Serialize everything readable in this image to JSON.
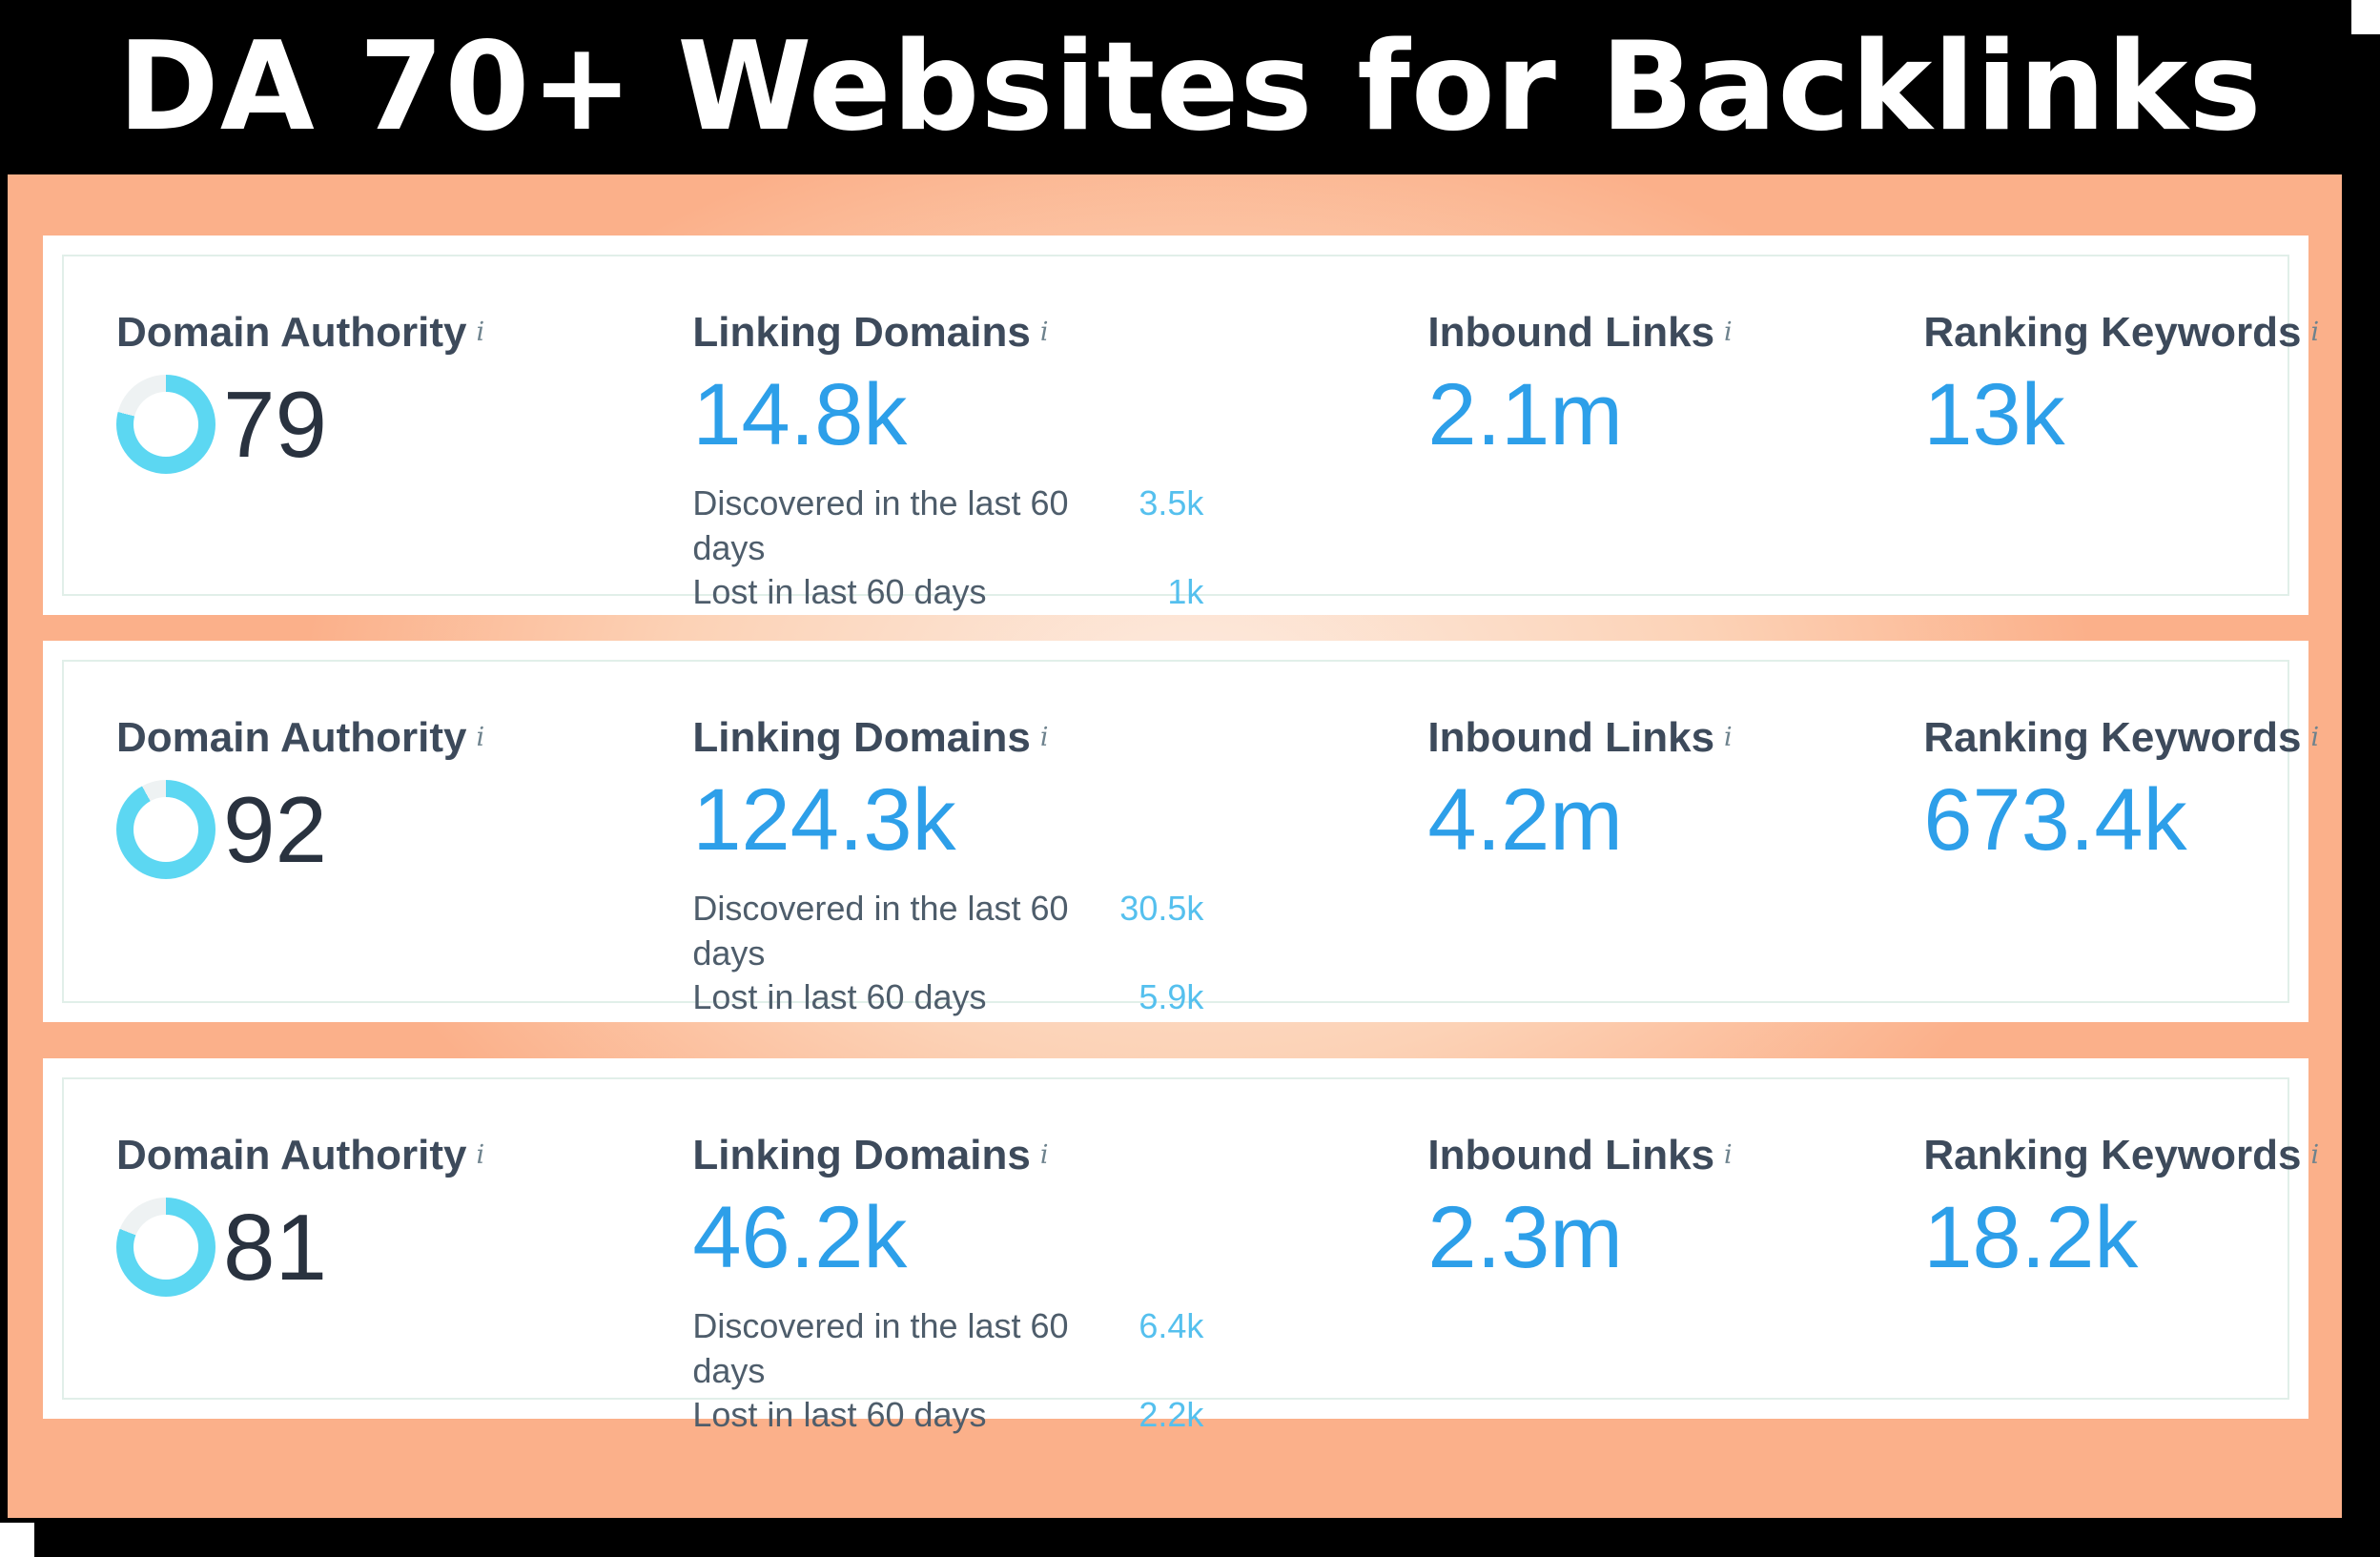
{
  "title": "DA 70+ Websites for Backlinks",
  "info_icon": "i",
  "colors": {
    "frame_black": "#000000",
    "panel_peach_edge": "#fbb08a",
    "panel_peach_center": "#fdece1",
    "card_border": "#e1efe9",
    "label_text": "#3d4a5b",
    "metric_blue": "#2d9fe9",
    "substat_label": "#4e5d6b",
    "substat_blue": "#55c0ee",
    "donut_arc": "#5cd7f2",
    "donut_track": "#eef2f3",
    "da_number": "#29323f"
  },
  "cards": [
    {
      "domain_authority": {
        "label": "Domain Authority",
        "value": "79",
        "percent": 79
      },
      "linking_domains": {
        "label": "Linking Domains",
        "value": "14.8k",
        "discovered_label": "Discovered in the last 60 days",
        "discovered_value": "3.5k",
        "lost_label": "Lost in last 60 days",
        "lost_value": "1k"
      },
      "inbound_links": {
        "label": "Inbound Links",
        "value": "2.1m"
      },
      "ranking_keywords": {
        "label": "Ranking Keywords",
        "value": "13k"
      }
    },
    {
      "domain_authority": {
        "label": "Domain Authority",
        "value": "92",
        "percent": 92
      },
      "linking_domains": {
        "label": "Linking Domains",
        "value": "124.3k",
        "discovered_label": "Discovered in the last 60 days",
        "discovered_value": "30.5k",
        "lost_label": "Lost in last 60 days",
        "lost_value": "5.9k"
      },
      "inbound_links": {
        "label": "Inbound Links",
        "value": "4.2m"
      },
      "ranking_keywords": {
        "label": "Ranking Keywords",
        "value": "673.4k"
      }
    },
    {
      "domain_authority": {
        "label": "Domain Authority",
        "value": "81",
        "percent": 81
      },
      "linking_domains": {
        "label": "Linking Domains",
        "value": "46.2k",
        "discovered_label": "Discovered in the last 60 days",
        "discovered_value": "6.4k",
        "lost_label": "Lost in last 60 days",
        "lost_value": "2.2k"
      },
      "inbound_links": {
        "label": "Inbound Links",
        "value": "2.3m"
      },
      "ranking_keywords": {
        "label": "Ranking Keywords",
        "value": "18.2k"
      }
    }
  ]
}
